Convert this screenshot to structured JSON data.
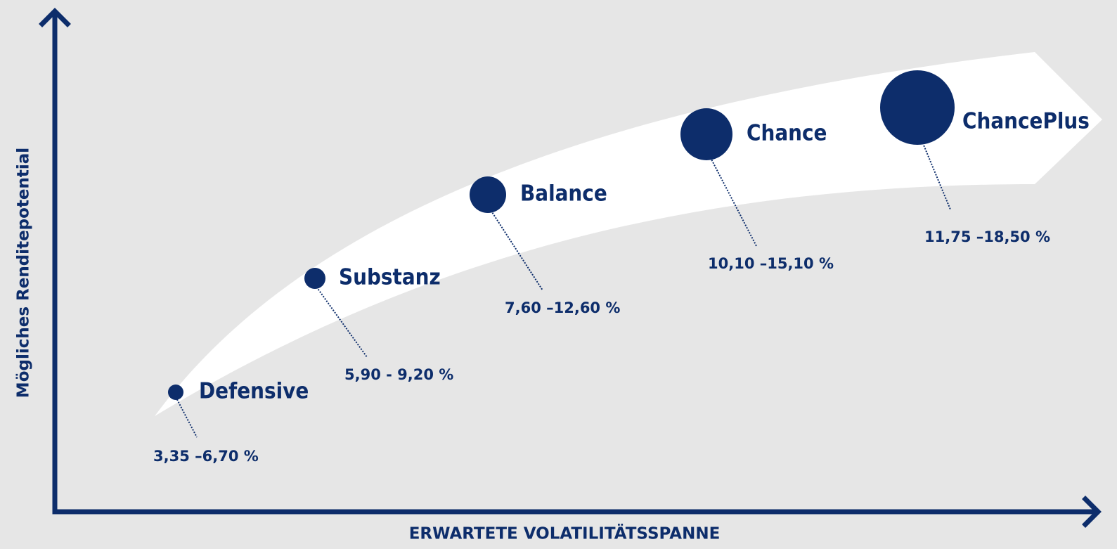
{
  "axes": {
    "y_label": "Mögliches Renditepotential",
    "x_label": "ERWARTETE VOLATILITÄTSSPANNE"
  },
  "items": [
    {
      "name": "Defensive",
      "range": "3,35 –6,70 %"
    },
    {
      "name": "Substanz",
      "range": "5,90 - 9,20 %"
    },
    {
      "name": "Balance",
      "range": "7,60 –12,60 %"
    },
    {
      "name": "Chance",
      "range": "10,10 –15,10 %"
    },
    {
      "name": "ChancePlus",
      "range": "11,75 –18,50 %"
    }
  ]
}
